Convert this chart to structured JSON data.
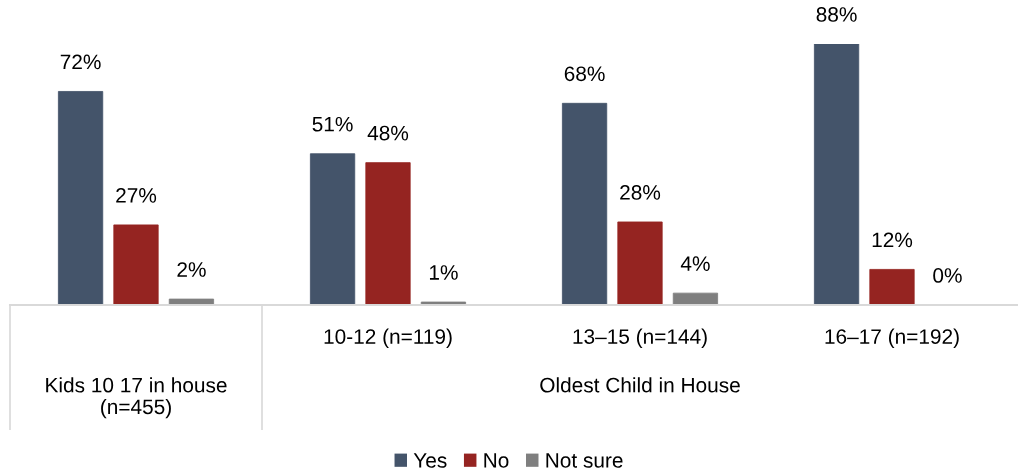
{
  "chart_data": {
    "type": "bar",
    "categories": [
      null,
      "10-12 (n=119)",
      "13–15 (n=144)",
      "16–17 (n=192)"
    ],
    "series": [
      {
        "name": "Yes",
        "color": "#44546a",
        "values": [
          72,
          51,
          68,
          88
        ],
        "value_labels": [
          "72%",
          "51%",
          "68%",
          "88%"
        ]
      },
      {
        "name": "No",
        "color": "#952421",
        "values": [
          27,
          48,
          28,
          12
        ],
        "value_labels": [
          "27%",
          "48%",
          "28%",
          "12%"
        ]
      },
      {
        "name": "Not sure",
        "color": "#7f7f7f",
        "values": [
          2,
          1,
          4,
          0
        ],
        "value_labels": [
          "2%",
          "1%",
          "4%",
          "0%"
        ]
      }
    ],
    "tick_labels": "x",
    "legend": "bottom",
    "annotations": [
      "Kids 10 17 in house\n(n=455)",
      "Oldest Child in House"
    ]
  }
}
